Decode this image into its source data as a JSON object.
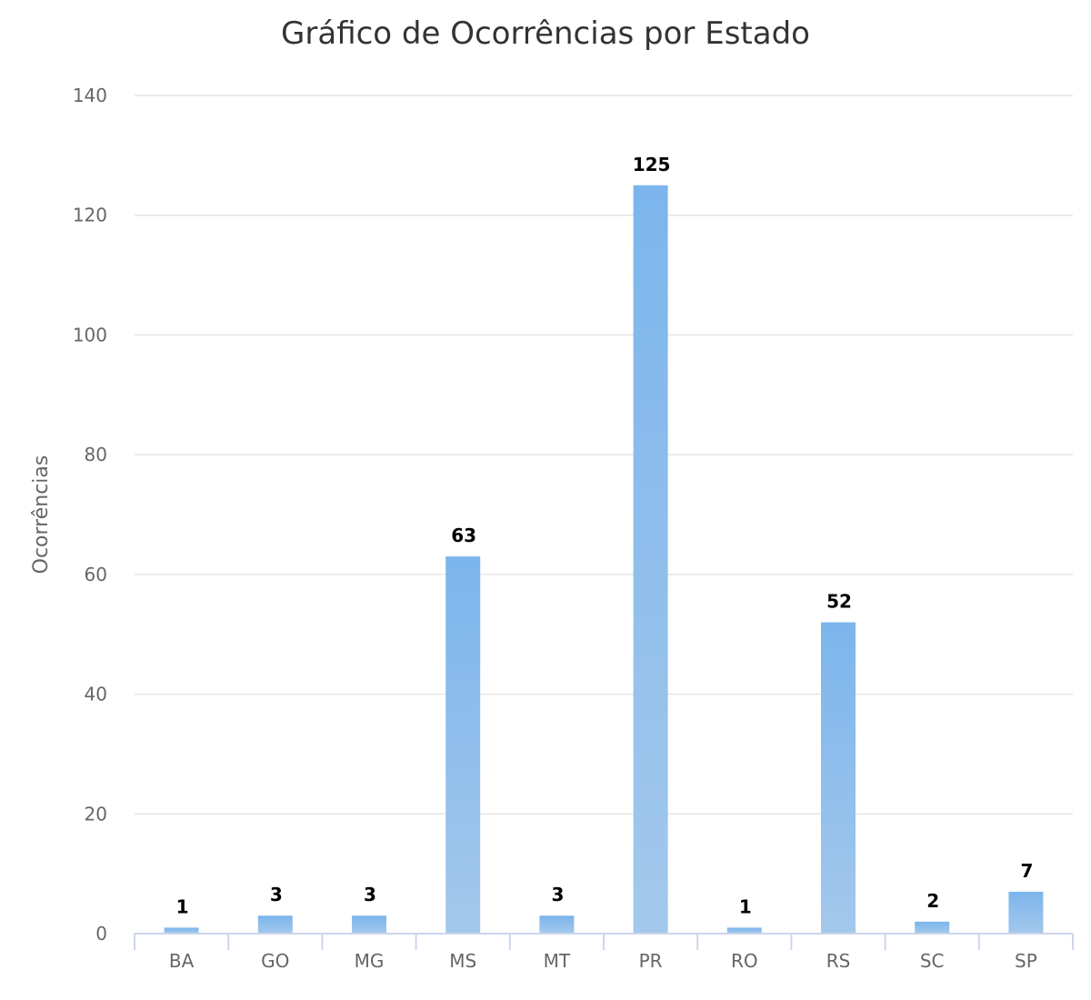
{
  "chart_data": {
    "type": "bar",
    "title": "Gráfico de Ocorrências por Estado",
    "xlabel": "",
    "ylabel": "Ocorrências",
    "categories": [
      "BA",
      "GO",
      "MG",
      "MS",
      "MT",
      "PR",
      "RO",
      "RS",
      "SC",
      "SP"
    ],
    "values": [
      1,
      3,
      3,
      63,
      3,
      125,
      1,
      52,
      2,
      7
    ],
    "data_labels": [
      "1",
      "3",
      "3",
      "63",
      "3",
      "125",
      "1",
      "52",
      "2",
      "7"
    ],
    "yticks": [
      0,
      20,
      40,
      60,
      80,
      100,
      120,
      140
    ],
    "ytick_labels": [
      "0",
      "20",
      "40",
      "60",
      "80",
      "100",
      "120",
      "140"
    ],
    "ylim": [
      0,
      140
    ],
    "grid": true,
    "legend": "none",
    "colors": {
      "bar_top": "#7cb5ec",
      "bar_bottom": "#a3c8ec",
      "grid": "#e6e6e6",
      "axis": "#ccd6eb",
      "title": "#333333",
      "labels": "#666666",
      "data_labels": "#000000"
    }
  }
}
